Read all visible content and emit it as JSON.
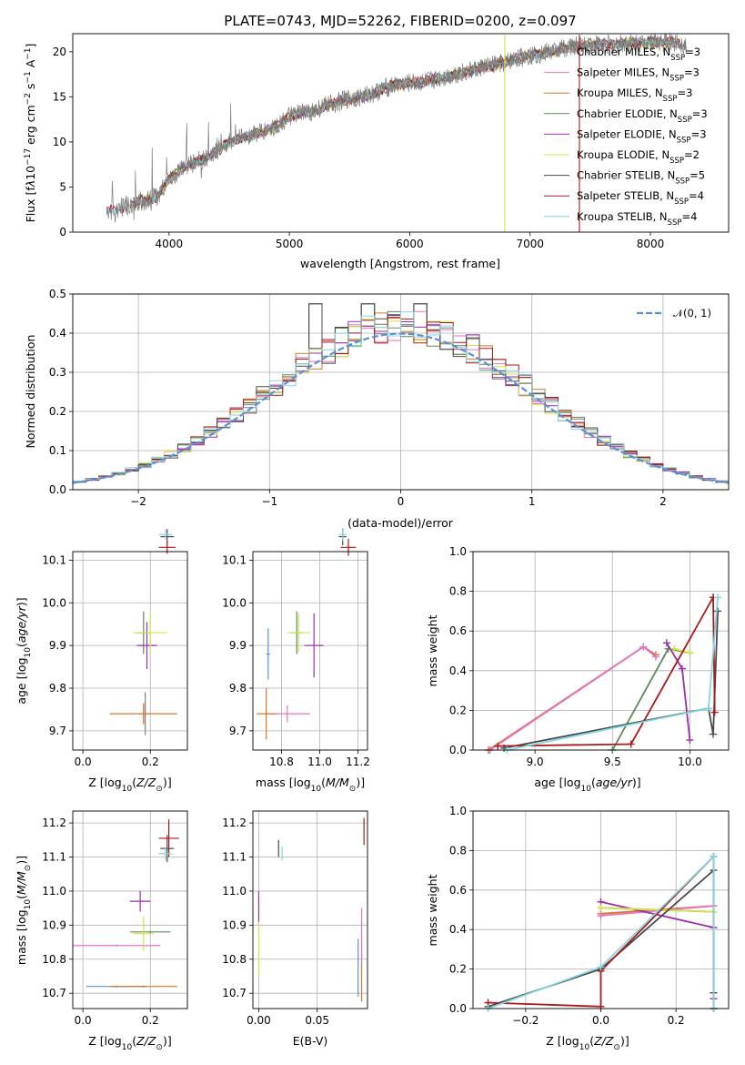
{
  "figure_title": "PLATE=0743, MJD=52262, FIBERID=0200, z=0.097",
  "colors": {
    "chabrier_miles": "#7f7f7f",
    "salpeter_miles": "#e377c2",
    "kroupa_miles": "#d2782c",
    "chabrier_elodie": "#5a8a5a",
    "salpeter_elodie": "#9b2fae",
    "kroupa_elodie": "#d4e44a",
    "chabrier_stelib": "#4a4a4a",
    "salpeter_stelib": "#aa1a1a",
    "kroupa_stelib": "#86d6e0",
    "normal_curve": "#5b8fd8",
    "grid": "#b0b0b0"
  },
  "chart_data": [
    {
      "id": "spectrum",
      "type": "line",
      "title": "PLATE=0743, MJD=52262, FIBERID=0200, z=0.097",
      "xlabel": "wavelength [Angstrom, rest frame]",
      "ylabel": "Flux [f_λ 10^-17 erg cm^-2 s^-1 A^-1]",
      "xlim": [
        3200,
        8650
      ],
      "ylim": [
        0,
        22
      ],
      "xticks": [
        "4000",
        "5000",
        "6000",
        "7000",
        "8000"
      ],
      "yticks": [
        "0",
        "5",
        "10",
        "15",
        "20"
      ],
      "legend_position": "top-right",
      "legend": [
        {
          "key": "chabrier_miles",
          "label": "Chabrier MILES, N",
          "sub": "SSP",
          "val": "=3"
        },
        {
          "key": "salpeter_miles",
          "label": "Salpeter MILES, N",
          "sub": "SSP",
          "val": "=3"
        },
        {
          "key": "kroupa_miles",
          "label": "Kroupa MILES, N",
          "sub": "SSP",
          "val": "=3"
        },
        {
          "key": "chabrier_elodie",
          "label": "Chabrier ELODIE, N",
          "sub": "SSP",
          "val": "=3"
        },
        {
          "key": "salpeter_elodie",
          "label": "Salpeter ELODIE, N",
          "sub": "SSP",
          "val": "=3"
        },
        {
          "key": "kroupa_elodie",
          "label": "Kroupa ELODIE, N",
          "sub": "SSP",
          "val": "=2"
        },
        {
          "key": "chabrier_stelib",
          "label": "Chabrier STELIB, N",
          "sub": "SSP",
          "val": "=5"
        },
        {
          "key": "salpeter_stelib",
          "label": "Salpeter STELIB, N",
          "sub": "SSP",
          "val": "=4"
        },
        {
          "key": "kroupa_stelib",
          "label": "Kroupa STELIB, N",
          "sub": "SSP",
          "val": "=4"
        }
      ],
      "continuum": [
        [
          3480,
          2.2
        ],
        [
          3600,
          2.7
        ],
        [
          3700,
          3.2
        ],
        [
          3800,
          3.5
        ],
        [
          3900,
          4.0
        ],
        [
          4000,
          5.8
        ],
        [
          4100,
          7.0
        ],
        [
          4200,
          7.6
        ],
        [
          4300,
          8.2
        ],
        [
          4400,
          9.0
        ],
        [
          4500,
          10.0
        ],
        [
          4600,
          10.4
        ],
        [
          4700,
          10.9
        ],
        [
          4800,
          11.2
        ],
        [
          4900,
          11.8
        ],
        [
          5000,
          12.8
        ],
        [
          5100,
          13.2
        ],
        [
          5200,
          13.4
        ],
        [
          5300,
          14.0
        ],
        [
          5400,
          14.4
        ],
        [
          5500,
          14.8
        ],
        [
          5600,
          15.0
        ],
        [
          5700,
          15.4
        ],
        [
          5800,
          16.0
        ],
        [
          5900,
          16.4
        ],
        [
          6000,
          16.5
        ],
        [
          6100,
          16.6
        ],
        [
          6200,
          16.9
        ],
        [
          6300,
          17.2
        ],
        [
          6400,
          17.6
        ],
        [
          6500,
          17.8
        ],
        [
          6600,
          18.3
        ],
        [
          6700,
          18.5
        ],
        [
          6800,
          18.8
        ],
        [
          6900,
          19.3
        ],
        [
          7000,
          19.6
        ],
        [
          7100,
          19.8
        ],
        [
          7200,
          20.1
        ],
        [
          7300,
          20.5
        ],
        [
          7400,
          20.6
        ],
        [
          7500,
          20.8
        ],
        [
          7600,
          20.9
        ],
        [
          7700,
          20.7
        ],
        [
          7800,
          21.0
        ],
        [
          7900,
          20.9
        ],
        [
          8000,
          21.2
        ],
        [
          8100,
          21.0
        ],
        [
          8200,
          21.1
        ],
        [
          8300,
          20.8
        ]
      ],
      "dropouts": [
        {
          "key": "kroupa_elodie",
          "x": 6790,
          "y_from": 21.9,
          "y_to": 0
        },
        {
          "key": "salpeter_stelib",
          "x": 7410,
          "y_from": 21.9,
          "y_to": 0
        }
      ]
    },
    {
      "id": "residuals",
      "type": "bar",
      "xlabel": "(data-model)/error",
      "ylabel": "Normed distribution",
      "xlim": [
        -2.5,
        2.5
      ],
      "ylim": [
        0,
        0.5
      ],
      "xticks": [
        "−2",
        "−1",
        "0",
        "1",
        "2"
      ],
      "yticks": [
        "0.0",
        "0.1",
        "0.2",
        "0.3",
        "0.4",
        "0.5"
      ],
      "bin_width": 0.1,
      "legend_position": "top-right",
      "normal_label": "𝒩(0, 1)",
      "peak_bins": [
        [
          -0.7,
          0.475
        ],
        [
          -0.3,
          0.475
        ],
        [
          0.1,
          0.475
        ]
      ]
    },
    {
      "id": "age_vs_Z",
      "type": "scatter",
      "xlabel": "Z [log10(Z/Z⊙)]",
      "ylabel": "age  [log10(age/yr)]",
      "xlim": [
        -0.03,
        0.31
      ],
      "ylim": [
        9.655,
        10.12
      ],
      "xticks": [
        "0.0",
        "0.2"
      ],
      "yticks": [
        "9.7",
        "9.8",
        "9.9",
        "10.0",
        "10.1"
      ]
    },
    {
      "id": "age_vs_mass",
      "type": "scatter",
      "xlabel": "mass [log10(M/M⊙)]",
      "xlim": [
        10.65,
        11.25
      ],
      "ylim": [
        9.655,
        10.12
      ],
      "xticks": [
        "10.8",
        "11.0",
        "11.2"
      ],
      "yticks": [
        "9.7",
        "9.8",
        "9.9",
        "10.0",
        "10.1"
      ]
    },
    {
      "id": "weight_vs_age",
      "type": "line",
      "xlabel": "age  [log10(age/yr)]",
      "ylabel": "mass weight",
      "xlim": [
        8.6,
        10.25
      ],
      "ylim": [
        0,
        1
      ],
      "xticks": [
        "9.0",
        "9.5",
        "10.0"
      ],
      "yticks": [
        "0.0",
        "0.2",
        "0.4",
        "0.6",
        "0.8",
        "1.0"
      ],
      "series": [
        {
          "key": "kroupa_miles",
          "x": [
            8.7,
            9.7,
            9.78
          ],
          "y": [
            0.0,
            0.52,
            0.48
          ]
        },
        {
          "key": "salpeter_miles",
          "x": [
            8.71,
            9.7,
            9.78
          ],
          "y": [
            0.0,
            0.52,
            0.47
          ]
        },
        {
          "key": "chabrier_elodie",
          "x": [
            9.5,
            9.86,
            10.0
          ],
          "y": [
            0.0,
            0.51,
            0.49
          ]
        },
        {
          "key": "salpeter_elodie",
          "x": [
            9.85,
            9.95,
            10.0
          ],
          "y": [
            0.54,
            0.41,
            0.05
          ]
        },
        {
          "key": "kroupa_elodie",
          "x": [
            9.9,
            10.0
          ],
          "y": [
            0.51,
            0.49
          ]
        },
        {
          "key": "chabrier_stelib",
          "x": [
            8.8,
            10.12,
            10.15,
            10.18
          ],
          "y": [
            0.01,
            0.21,
            0.08,
            0.7
          ]
        },
        {
          "key": "salpeter_stelib",
          "x": [
            8.76,
            9.62,
            10.15,
            10.16
          ],
          "y": [
            0.02,
            0.03,
            0.77,
            0.19
          ]
        },
        {
          "key": "kroupa_stelib",
          "x": [
            8.82,
            10.12,
            10.18
          ],
          "y": [
            0.0,
            0.21,
            0.77
          ]
        }
      ]
    },
    {
      "id": "mass_vs_Z",
      "type": "scatter",
      "xlabel": "Z [log10(Z/Z⊙)]",
      "ylabel": "mass [log10(M/M⊙)]",
      "xlim": [
        -0.03,
        0.31
      ],
      "ylim": [
        10.655,
        11.235
      ],
      "xticks": [
        "0.0",
        "0.2"
      ],
      "yticks": [
        "10.7",
        "10.8",
        "10.9",
        "11.0",
        "11.1",
        "11.2"
      ]
    },
    {
      "id": "mass_vs_EBV",
      "type": "scatter",
      "xlabel": "E(B-V)",
      "xlim": [
        -0.005,
        0.093
      ],
      "ylim": [
        10.655,
        11.235
      ],
      "xticks": [
        "0.00",
        "0.05"
      ],
      "yticks": [
        "10.7",
        "10.8",
        "10.9",
        "11.0",
        "11.1",
        "11.2"
      ]
    },
    {
      "id": "weight_vs_Z",
      "type": "line",
      "xlabel": "Z [log10(Z/Z⊙)]",
      "ylabel": "mass weight",
      "xlim": [
        -0.34,
        0.34
      ],
      "ylim": [
        0,
        1
      ],
      "xticks": [
        "−0.2",
        "0.0",
        "0.2"
      ],
      "yticks": [
        "0.0",
        "0.2",
        "0.4",
        "0.6",
        "0.8",
        "1.0"
      ],
      "series": [
        {
          "key": "kroupa_miles",
          "x": [
            0.0,
            0.3
          ],
          "y": [
            0.48,
            0.52
          ]
        },
        {
          "key": "salpeter_miles",
          "x": [
            0.0,
            0.3
          ],
          "y": [
            0.47,
            0.52
          ]
        },
        {
          "key": "chabrier_elodie",
          "x": [
            0.0,
            0.3
          ],
          "y": [
            0.51,
            0.49
          ]
        },
        {
          "key": "salpeter_elodie",
          "x": [
            0.0,
            0.3,
            0.3
          ],
          "y": [
            0.54,
            0.41,
            0.05
          ]
        },
        {
          "key": "kroupa_elodie",
          "x": [
            0.0,
            0.3
          ],
          "y": [
            0.51,
            0.49
          ]
        },
        {
          "key": "chabrier_stelib",
          "x": [
            -0.3,
            0.0,
            0.3,
            0.3,
            0.3
          ],
          "y": [
            0.01,
            0.2,
            0.7,
            0.08,
            0.0
          ]
        },
        {
          "key": "salpeter_stelib",
          "x": [
            -0.3,
            0.0,
            0.0,
            0.3,
            0.3
          ],
          "y": [
            0.03,
            0.01,
            0.19,
            0.77,
            0.0
          ]
        },
        {
          "key": "kroupa_stelib",
          "x": [
            -0.3,
            0.0,
            0.3,
            0.3
          ],
          "y": [
            0.0,
            0.21,
            0.77,
            0.0
          ]
        }
      ]
    }
  ],
  "errorbars": {
    "age_vs_Z": [
      {
        "key": "chabrier_miles",
        "x": 0.185,
        "dx": 0.005,
        "y": 9.74,
        "dy": 0.05
      },
      {
        "key": "salpeter_miles",
        "x": 0.18,
        "dx": 0.012,
        "y": 9.74,
        "dy": 0.02
      },
      {
        "key": "kroupa_miles",
        "x": 0.18,
        "dx": 0.1,
        "y": 9.74,
        "dy": 0.025
      },
      {
        "key": "chabrier_elodie",
        "x": 0.18,
        "dx": 0.02,
        "y": 9.93,
        "dy": 0.05
      },
      {
        "key": "salpeter_elodie",
        "x": 0.19,
        "dx": 0.03,
        "y": 9.9,
        "dy": 0.055
      },
      {
        "key": "kroupa_elodie",
        "x": 0.2,
        "dx": 0.05,
        "y": 9.93,
        "dy": 0.04
      },
      {
        "key": "chabrier_stelib",
        "x": 0.25,
        "dx": 0.02,
        "y": 10.155,
        "dy": 0.018
      },
      {
        "key": "salpeter_stelib",
        "x": 0.25,
        "dx": 0.025,
        "y": 10.13,
        "dy": 0.015
      },
      {
        "key": "kroupa_stelib",
        "x": 0.245,
        "dx": 0.02,
        "y": 10.16,
        "dy": 0.012
      }
    ],
    "age_vs_mass": [
      {
        "key": "salpeter_miles",
        "x": 10.83,
        "dx": 0.12,
        "y": 9.74,
        "dy": 0.02
      },
      {
        "key": "kroupa_miles",
        "x": 10.72,
        "dx": 0.05,
        "y": 9.74,
        "dy": 0.06
      },
      {
        "key": "chabrier_elodie",
        "x": 10.88,
        "dx": 0.03,
        "y": 9.93,
        "dy": 0.05
      },
      {
        "key": "salpeter_elodie",
        "x": 10.97,
        "dx": 0.05,
        "y": 9.9,
        "dy": 0.075
      },
      {
        "key": "kroupa_elodie",
        "x": 10.89,
        "dx": 0.06,
        "y": 9.93,
        "dy": 0.045
      },
      {
        "key": "normal_curve",
        "x": 10.73,
        "dx": 0.01,
        "y": 9.88,
        "dy": 0.06
      },
      {
        "key": "chabrier_stelib",
        "x": 11.12,
        "dx": 0.02,
        "y": 10.155,
        "dy": 0.02
      },
      {
        "key": "salpeter_stelib",
        "x": 11.15,
        "dx": 0.04,
        "y": 10.13,
        "dy": 0.02
      },
      {
        "key": "kroupa_stelib",
        "x": 11.12,
        "dx": 0.02,
        "y": 10.16,
        "dy": 0.015
      }
    ],
    "mass_vs_Z": [
      {
        "key": "normal_curve",
        "x": 0.1,
        "dx": 0.09,
        "y": 10.72,
        "dy": 0.003
      },
      {
        "key": "kroupa_miles",
        "x": 0.18,
        "dx": 0.1,
        "y": 10.72,
        "dy": 0.003
      },
      {
        "key": "salpeter_miles",
        "x": 0.1,
        "dx": 0.13,
        "y": 10.84,
        "dy": 0.003
      },
      {
        "key": "chabrier_elodie",
        "x": 0.2,
        "dx": 0.06,
        "y": 10.88,
        "dy": 0.003
      },
      {
        "key": "salpeter_elodie",
        "x": 0.17,
        "dx": 0.03,
        "y": 10.97,
        "dy": 0.03
      },
      {
        "key": "kroupa_elodie",
        "x": 0.18,
        "dx": 0.03,
        "y": 10.875,
        "dy": 0.05
      },
      {
        "key": "chabrier_stelib",
        "x": 0.25,
        "dx": 0.02,
        "y": 11.125,
        "dy": 0.04
      },
      {
        "key": "salpeter_stelib",
        "x": 0.255,
        "dx": 0.03,
        "y": 11.155,
        "dy": 0.055
      },
      {
        "key": "kroupa_stelib",
        "x": 0.245,
        "dx": 0.02,
        "y": 11.11,
        "dy": 0.02
      }
    ],
    "mass_vs_EBV": [
      {
        "key": "salpeter_elodie",
        "x": 0.0,
        "dx": 0.0,
        "y": 10.95,
        "dy": 0.05
      },
      {
        "key": "kroupa_elodie",
        "x": 0.0,
        "dx": 0.0,
        "y": 10.83,
        "dy": 0.08
      },
      {
        "key": "chabrier_stelib",
        "x": 0.017,
        "dx": 0.0,
        "y": 11.125,
        "dy": 0.025
      },
      {
        "key": "kroupa_stelib",
        "x": 0.02,
        "dx": 0.0,
        "y": 11.11,
        "dy": 0.02
      },
      {
        "key": "normal_curve",
        "x": 0.085,
        "dx": 0.0,
        "y": 10.775,
        "dy": 0.085
      },
      {
        "key": "kroupa_miles",
        "x": 0.088,
        "dx": 0.0,
        "y": 10.77,
        "dy": 0.095
      },
      {
        "key": "salpeter_miles",
        "x": 0.088,
        "dx": 0.0,
        "y": 10.87,
        "dy": 0.08
      },
      {
        "key": "salpeter_stelib",
        "x": 0.09,
        "dx": 0.0,
        "y": 11.175,
        "dy": 0.04
      }
    ]
  }
}
